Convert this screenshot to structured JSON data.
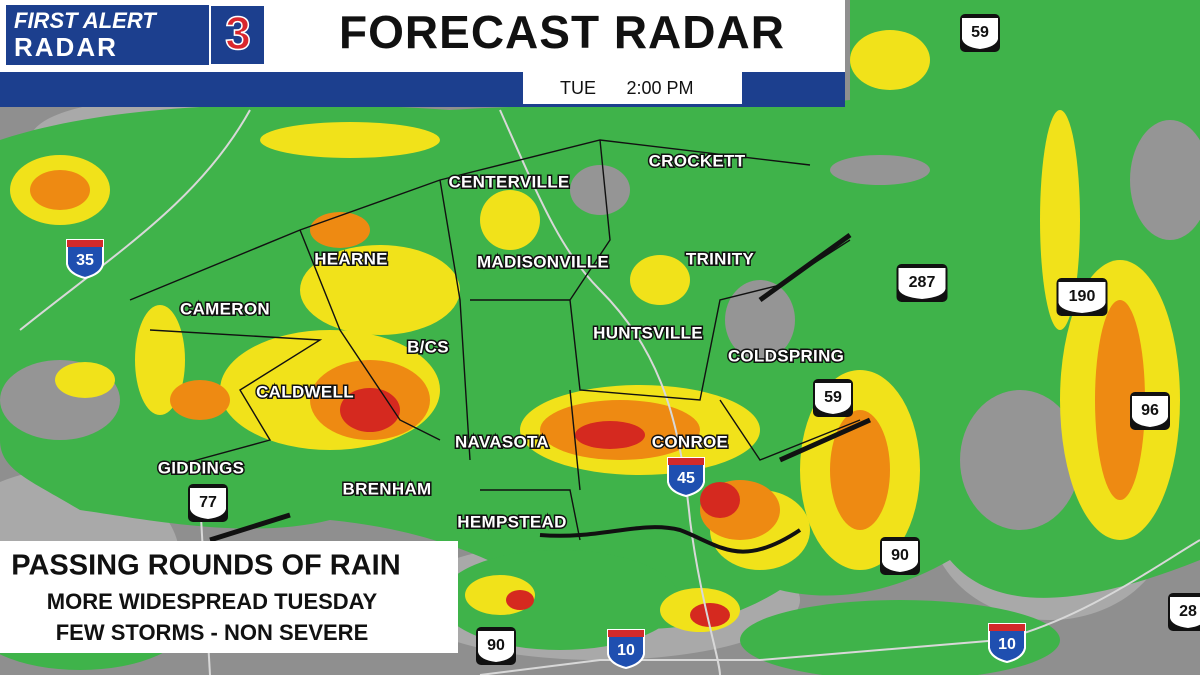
{
  "header": {
    "logo_top": "FIRST ALERT",
    "logo_bottom": "RADAR",
    "logo_number": "3",
    "title": "FORECAST RADAR",
    "day": "TUE",
    "time": "2:00 PM"
  },
  "cities": [
    "CENTERVILLE",
    "CROCKETT",
    "HEARNE",
    "MADISONVILLE",
    "TRINITY",
    "CAMERON",
    "HUNTSVILLE",
    "B/CS",
    "COLDSPRING",
    "CALDWELL",
    "NAVASOTA",
    "CONROE",
    "GIDDINGS",
    "BRENHAM",
    "HEMPSTEAD"
  ],
  "highways": [
    {
      "type": "us",
      "label": "59"
    },
    {
      "type": "interstate",
      "label": "35"
    },
    {
      "type": "us",
      "label": "287"
    },
    {
      "type": "us",
      "label": "190"
    },
    {
      "type": "us",
      "label": "59"
    },
    {
      "type": "us",
      "label": "96"
    },
    {
      "type": "interstate",
      "label": "45"
    },
    {
      "type": "us",
      "label": "77"
    },
    {
      "type": "us",
      "label": "90"
    },
    {
      "type": "us",
      "label": "90"
    },
    {
      "type": "interstate",
      "label": "10"
    },
    {
      "type": "interstate",
      "label": "10"
    },
    {
      "type": "us",
      "label": "28"
    }
  ],
  "caption": {
    "headline": "PASSING ROUNDS OF RAIN",
    "lines": [
      "MORE WIDESPREAD TUESDAY",
      "FEW STORMS - NON SEVERE"
    ]
  }
}
